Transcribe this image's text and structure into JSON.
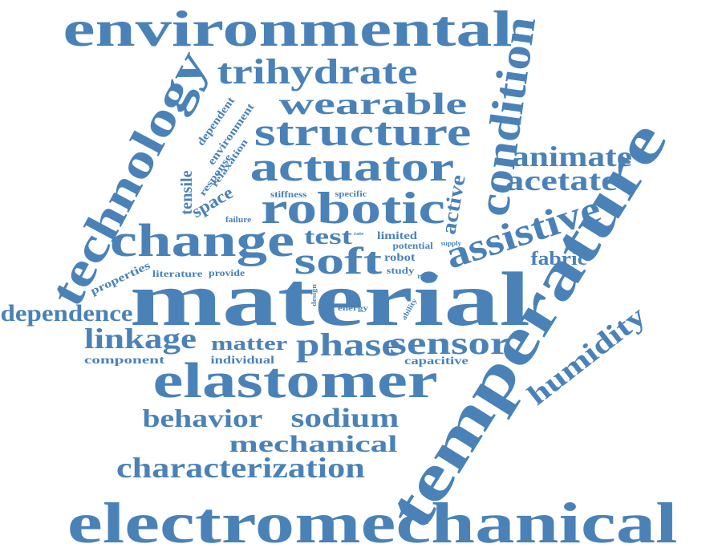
{
  "color": "#4a82b8",
  "words": [
    "environmental",
    "trihydrate",
    "technology",
    "wearable",
    "structure",
    "condition",
    "animate",
    "acetate",
    "actuator",
    "temperature",
    "robotic",
    "change",
    "assistive",
    "soft",
    "test",
    "active",
    "material",
    "dependence",
    "linkage",
    "phase",
    "sensor",
    "humidity",
    "elastomer",
    "matter",
    "fabric",
    "behavior",
    "sodium",
    "mechanical",
    "characterization",
    "electromechanical",
    "dependent",
    "environment",
    "tensile",
    "relaxation",
    "response",
    "space",
    "stiffness",
    "specific",
    "failure",
    "limited",
    "potential",
    "supply",
    "robot",
    "study",
    "range",
    "properties",
    "literature",
    "provide",
    "design",
    "energy",
    "ability",
    "component",
    "individual",
    "capacitive",
    "rate"
  ]
}
